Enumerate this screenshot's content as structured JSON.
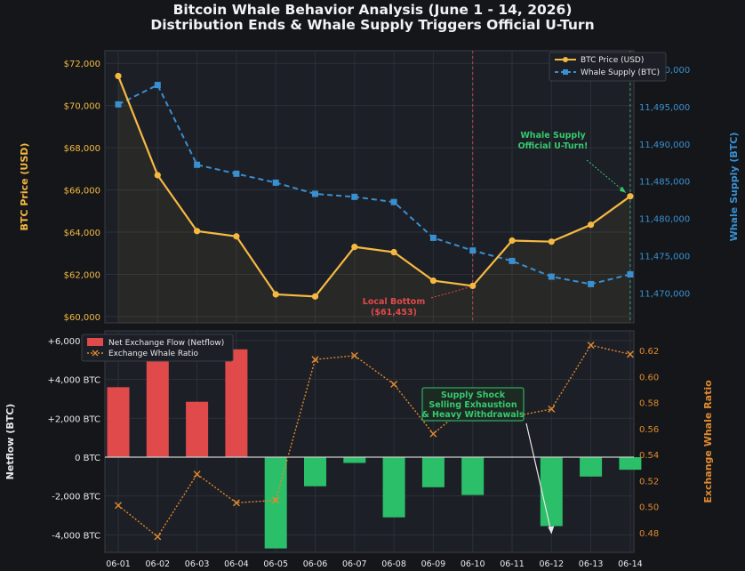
{
  "title": "Bitcoin Whale Behavior Analysis (June 1 - 14, 2026)",
  "subtitle": "Distribution Ends & Whale Supply Triggers Official U-Turn",
  "colors": {
    "background": "#14161a",
    "panel": "#1c1f26",
    "btc_price": "#f5b942",
    "whale_supply": "#3a8fd0",
    "netflow_positive": "#e04a4a",
    "netflow_negative": "#2bbf6a",
    "whale_ratio": "#e0892f",
    "local_bottom": "#e04a4a",
    "u_turn": "#36c96e"
  },
  "chart_data": [
    {
      "type": "line",
      "categories": [
        "06-01",
        "06-02",
        "06-03",
        "06-04",
        "06-05",
        "06-06",
        "06-07",
        "06-08",
        "06-09",
        "06-10",
        "06-11",
        "06-12",
        "06-13",
        "06-14"
      ],
      "ylabel": "BTC Price (USD)",
      "y2label": "Whale Supply (BTC)",
      "ylim": [
        59700,
        72600
      ],
      "y2lim": [
        11466000,
        11502500
      ],
      "yticks": [
        60000,
        62000,
        64000,
        66000,
        68000,
        70000,
        72000
      ],
      "yticklabels": [
        "$60,000",
        "$62,000",
        "$64,000",
        "$66,000",
        "$68,000",
        "$70,000",
        "$72,000"
      ],
      "y2ticks": [
        11470000,
        11475000,
        11480000,
        11485000,
        11490000,
        11495000,
        11500000
      ],
      "y2ticklabels": [
        "11,470,000",
        "11,475,000",
        "11,480,000",
        "11,485,000",
        "11,490,000",
        "11,495,000",
        "11,500,000"
      ],
      "legend": "top-right",
      "grid": true,
      "series": [
        {
          "name": "BTC Price (USD)",
          "axis": "left",
          "style": "solid",
          "marker": "circle",
          "values": [
            71400,
            66700,
            64050,
            63800,
            61050,
            60950,
            63300,
            63050,
            61700,
            61453,
            63600,
            63550,
            64350,
            65700
          ]
        },
        {
          "name": "Whale Supply (BTC)",
          "axis": "right",
          "style": "dashed",
          "marker": "square",
          "values": [
            11495300,
            11497900,
            11487200,
            11486000,
            11484800,
            11483300,
            11482900,
            11482200,
            11477400,
            11475700,
            11474300,
            11472200,
            11471200,
            11472500
          ]
        }
      ],
      "annotations": [
        {
          "text": [
            "Local Bottom",
            "($61,453)"
          ],
          "target": "06-10"
        },
        {
          "text": [
            "Whale Supply",
            "Official U-Turn!"
          ],
          "target": "06-14"
        }
      ]
    },
    {
      "type": "bar",
      "categories": [
        "06-01",
        "06-02",
        "06-03",
        "06-04",
        "06-05",
        "06-06",
        "06-07",
        "06-08",
        "06-09",
        "06-10",
        "06-11",
        "06-12",
        "06-13",
        "06-14"
      ],
      "ylabel": "Netflow (BTC)",
      "y2label": "Exchange Whale Ratio",
      "ylim": [
        -4900,
        6500
      ],
      "y2lim": [
        0.465,
        0.635
      ],
      "yticks": [
        -4000,
        -2000,
        0,
        2000,
        4000,
        6000
      ],
      "yticklabels": [
        "-4,000 BTC",
        "-2,000 BTC",
        "0 BTC",
        "+2,000 BTC",
        "+4,000 BTC",
        "+6,000 BTC"
      ],
      "y2ticks": [
        0.48,
        0.5,
        0.52,
        0.54,
        0.56,
        0.58,
        0.6,
        0.62
      ],
      "y2ticklabels": [
        "0.48",
        "0.50",
        "0.52",
        "0.54",
        "0.56",
        "0.58",
        "0.60",
        "0.62"
      ],
      "legend": "top-left",
      "grid": true,
      "series": [
        {
          "name": "Net Exchange Flow (Netflow)",
          "axis": "left",
          "kind": "bar",
          "values": [
            3600,
            5300,
            2850,
            5550,
            -4700,
            -1500,
            -300,
            -3100,
            -1550,
            -1950,
            0,
            -3550,
            -1000,
            -650
          ]
        },
        {
          "name": "Exchange Whale Ratio",
          "axis": "right",
          "kind": "line",
          "style": "dotted",
          "marker": "x",
          "values": [
            0.501,
            0.477,
            0.525,
            0.503,
            0.505,
            0.613,
            0.616,
            0.594,
            0.556,
            0.581,
            0.569,
            0.575,
            0.624,
            0.617
          ]
        }
      ],
      "annotations": [
        {
          "text": [
            "Supply Shock",
            "Selling Exhaustion",
            "& Heavy Withdrawals"
          ],
          "target": "06-12"
        }
      ]
    }
  ]
}
